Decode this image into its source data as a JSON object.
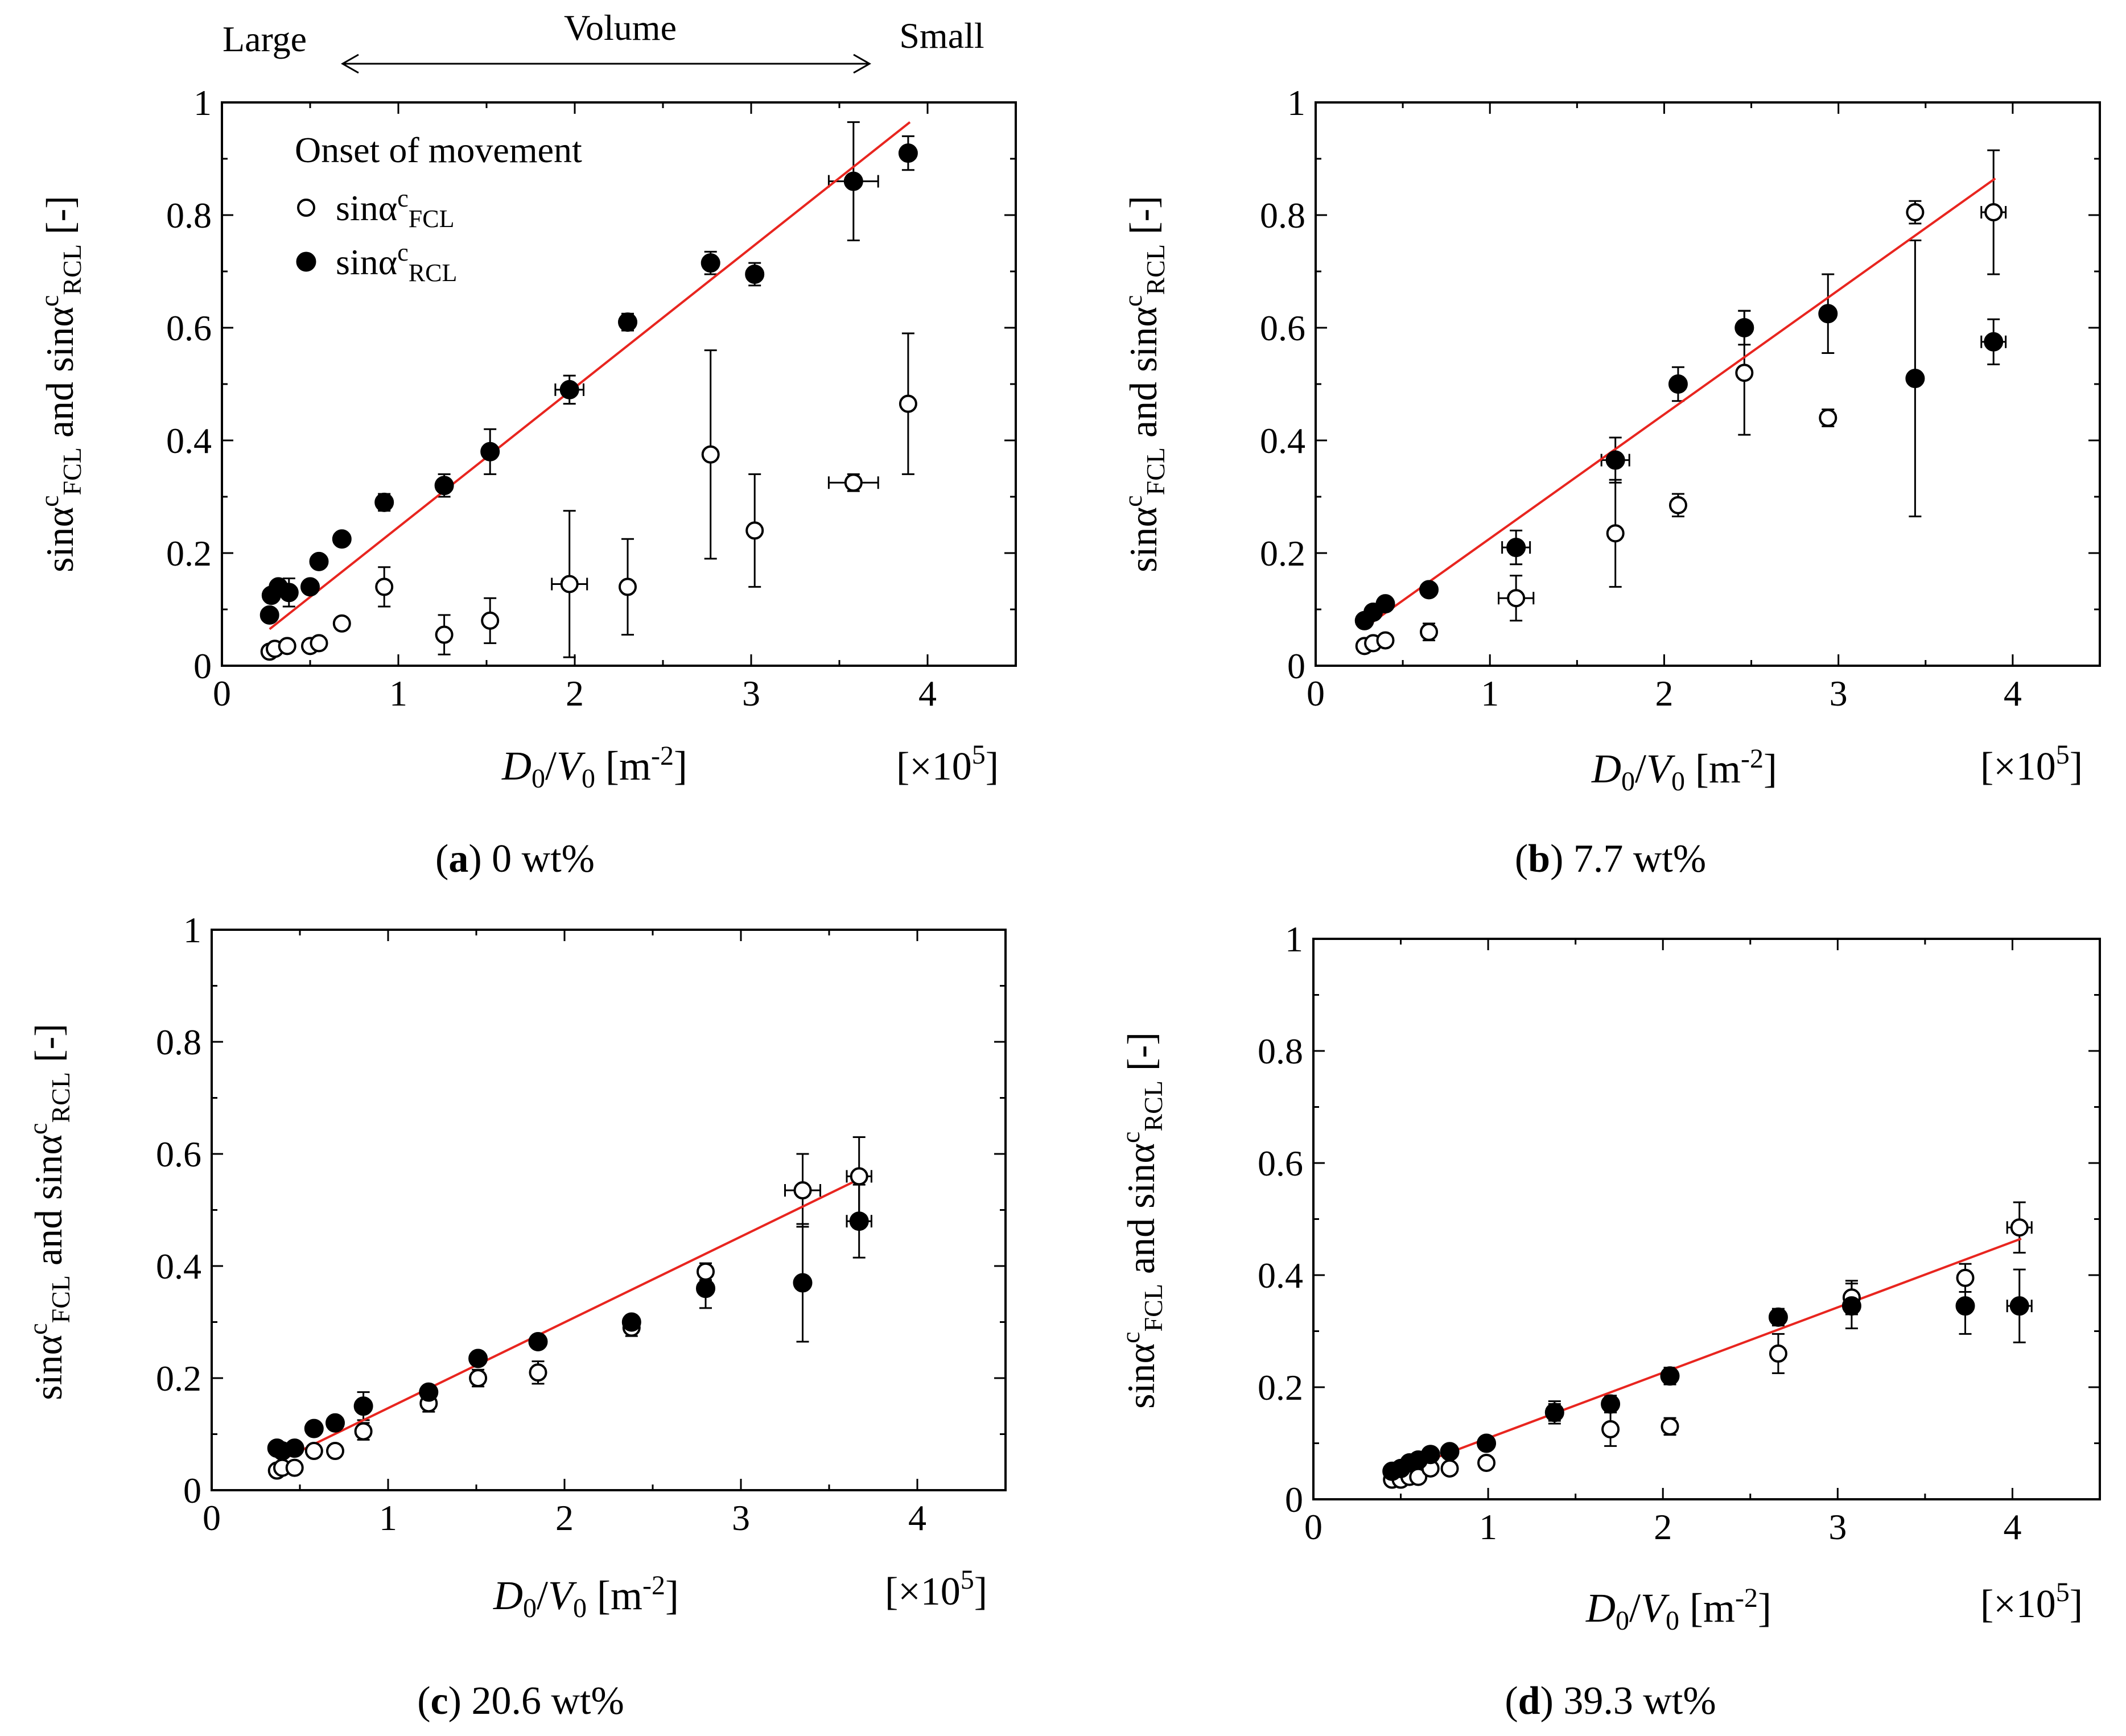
{
  "figure": {
    "top_annotation": {
      "large": "Large",
      "volume": "Volume",
      "small": "Small"
    },
    "legend": {
      "title": "Onset of movement",
      "series": [
        {
          "name": "FCL",
          "base": "sinα",
          "sup": "c",
          "sub": "FCL",
          "marker": "open-circle"
        },
        {
          "name": "RCL",
          "base": "sinα",
          "sup": "c",
          "sub": "RCL",
          "marker": "filled-circle"
        }
      ]
    }
  },
  "colors": {
    "fit_line": "#e8251f",
    "marker": "#000000",
    "axis": "#000000"
  },
  "chart_data": [
    {
      "type": "scatter",
      "panel": "a",
      "caption_letter": "a",
      "caption_text": " 0 wt%",
      "xlabel": {
        "d": "D",
        "d_sub": "0",
        "slash": "/",
        "v": "V",
        "v_sub": "0",
        "unit": " [m",
        "unit_sup": "-2",
        "unit_end": "]"
      },
      "ylabel": {
        "p1": "sinα",
        "p1_sup": "c",
        "p1_sub": "FCL",
        "mid": " and sinα",
        "p2_sup": "c",
        "p2_sub": "RCL",
        "end": " [-]"
      },
      "x_scale": {
        "text": "[×10",
        "sup": "5",
        "end": "]"
      },
      "xlim": [
        0,
        4.5
      ],
      "ylim": [
        0,
        1
      ],
      "xticks": [
        "0",
        "1",
        "2",
        "3",
        "4"
      ],
      "yticks": [
        "0",
        "0.2",
        "0.4",
        "0.6",
        "0.8",
        "1"
      ],
      "fit_line": {
        "x": [
          0.27,
          3.9
        ],
        "y": [
          0.065,
          0.965
        ]
      },
      "series": [
        {
          "name": "FCL",
          "marker": "open",
          "points": [
            {
              "x": 0.27,
              "y": 0.025,
              "ey": 0.01
            },
            {
              "x": 0.3,
              "y": 0.03,
              "ey": 0.01
            },
            {
              "x": 0.37,
              "y": 0.035,
              "ey": 0.01
            },
            {
              "x": 0.5,
              "y": 0.035,
              "ey": 0.01
            },
            {
              "x": 0.55,
              "y": 0.04,
              "ey": 0.01
            },
            {
              "x": 0.68,
              "y": 0.075,
              "ey": 0.01
            },
            {
              "x": 0.92,
              "y": 0.14,
              "ey": 0.035
            },
            {
              "x": 1.26,
              "y": 0.055,
              "ey": 0.035
            },
            {
              "x": 1.52,
              "y": 0.08,
              "ey": 0.04
            },
            {
              "x": 1.97,
              "y": 0.145,
              "ey": 0.13,
              "ex": 0.1
            },
            {
              "x": 2.3,
              "y": 0.14,
              "ey": 0.085
            },
            {
              "x": 2.77,
              "y": 0.375,
              "ey": 0.185
            },
            {
              "x": 3.02,
              "y": 0.24,
              "ey": 0.1
            },
            {
              "x": 3.58,
              "y": 0.325,
              "ey": 0.015,
              "ex": 0.14
            },
            {
              "x": 3.89,
              "y": 0.465,
              "ey": 0.125
            }
          ]
        },
        {
          "name": "RCL",
          "marker": "filled",
          "points": [
            {
              "x": 0.27,
              "y": 0.09,
              "ey": 0.01
            },
            {
              "x": 0.28,
              "y": 0.125,
              "ey": 0.01
            },
            {
              "x": 0.32,
              "y": 0.14,
              "ey": 0.01
            },
            {
              "x": 0.38,
              "y": 0.13,
              "ey": 0.025
            },
            {
              "x": 0.5,
              "y": 0.14,
              "ey": 0.01
            },
            {
              "x": 0.55,
              "y": 0.185,
              "ey": 0.01
            },
            {
              "x": 0.68,
              "y": 0.225,
              "ey": 0.01
            },
            {
              "x": 0.92,
              "y": 0.29,
              "ey": 0.015
            },
            {
              "x": 1.26,
              "y": 0.32,
              "ey": 0.02
            },
            {
              "x": 1.52,
              "y": 0.38,
              "ey": 0.04
            },
            {
              "x": 1.97,
              "y": 0.49,
              "ey": 0.025,
              "ex": 0.08
            },
            {
              "x": 2.3,
              "y": 0.61,
              "ey": 0.015
            },
            {
              "x": 2.77,
              "y": 0.715,
              "ey": 0.02
            },
            {
              "x": 3.02,
              "y": 0.695,
              "ey": 0.02
            },
            {
              "x": 3.58,
              "y": 0.86,
              "ey": 0.105,
              "ex": 0.14
            },
            {
              "x": 3.89,
              "y": 0.91,
              "ey": 0.03
            }
          ]
        }
      ]
    },
    {
      "type": "scatter",
      "panel": "b",
      "caption_letter": "b",
      "caption_text": " 7.7 wt%",
      "xlabel": {
        "d": "D",
        "d_sub": "0",
        "slash": "/",
        "v": "V",
        "v_sub": "0",
        "unit": " [m",
        "unit_sup": "-2",
        "unit_end": "]"
      },
      "ylabel": {
        "p1": "sinα",
        "p1_sup": "c",
        "p1_sub": "FCL",
        "mid": " and sinα",
        "p2_sup": "c",
        "p2_sub": "RCL",
        "end": " [-]"
      },
      "x_scale": {
        "text": "[×10",
        "sup": "5",
        "end": "]"
      },
      "xlim": [
        0,
        4.5
      ],
      "ylim": [
        0,
        1
      ],
      "xticks": [
        "0",
        "1",
        "2",
        "3",
        "4"
      ],
      "yticks": [
        "0",
        "0.2",
        "0.4",
        "0.6",
        "0.8",
        "1"
      ],
      "fit_line": {
        "x": [
          0.27,
          3.9
        ],
        "y": [
          0.065,
          0.865
        ]
      },
      "series": [
        {
          "name": "FCL",
          "marker": "open",
          "points": [
            {
              "x": 0.28,
              "y": 0.035,
              "ey": 0.01
            },
            {
              "x": 0.33,
              "y": 0.04,
              "ey": 0.01
            },
            {
              "x": 0.4,
              "y": 0.045,
              "ey": 0.01
            },
            {
              "x": 0.65,
              "y": 0.06,
              "ey": 0.015
            },
            {
              "x": 1.15,
              "y": 0.12,
              "ey": 0.04,
              "ex": 0.1
            },
            {
              "x": 1.72,
              "y": 0.235,
              "ey": 0.095
            },
            {
              "x": 2.08,
              "y": 0.285,
              "ey": 0.02
            },
            {
              "x": 2.46,
              "y": 0.52,
              "ey": 0.11
            },
            {
              "x": 2.94,
              "y": 0.44,
              "ey": 0.015
            },
            {
              "x": 3.44,
              "y": 0.805,
              "ey": 0.02
            },
            {
              "x": 3.89,
              "y": 0.805,
              "ey": 0.11,
              "ex": 0.07
            }
          ]
        },
        {
          "name": "RCL",
          "marker": "filled",
          "points": [
            {
              "x": 0.28,
              "y": 0.08,
              "ey": 0.01
            },
            {
              "x": 0.33,
              "y": 0.095,
              "ey": 0.01
            },
            {
              "x": 0.4,
              "y": 0.11,
              "ey": 0.01
            },
            {
              "x": 0.65,
              "y": 0.135,
              "ey": 0.01
            },
            {
              "x": 1.15,
              "y": 0.21,
              "ey": 0.03,
              "ex": 0.08
            },
            {
              "x": 1.72,
              "y": 0.365,
              "ey": 0.04,
              "ex": 0.08
            },
            {
              "x": 2.08,
              "y": 0.5,
              "ey": 0.03
            },
            {
              "x": 2.46,
              "y": 0.6,
              "ey": 0.03
            },
            {
              "x": 2.94,
              "y": 0.625,
              "ey": 0.07
            },
            {
              "x": 3.44,
              "y": 0.51,
              "ey": 0.245
            },
            {
              "x": 3.89,
              "y": 0.575,
              "ey": 0.04,
              "ex": 0.07
            }
          ]
        }
      ]
    },
    {
      "type": "scatter",
      "panel": "c",
      "caption_letter": "c",
      "caption_text": " 20.6 wt%",
      "xlabel": {
        "d": "D",
        "d_sub": "0",
        "slash": "/",
        "v": "V",
        "v_sub": "0",
        "unit": " [m",
        "unit_sup": "-2",
        "unit_end": "]"
      },
      "ylabel": {
        "p1": "sinα",
        "p1_sup": "c",
        "p1_sub": "FCL",
        "mid": " and sinα",
        "p2_sup": "c",
        "p2_sub": "RCL",
        "end": " [-]"
      },
      "x_scale": {
        "text": "[×10",
        "sup": "5",
        "end": "]"
      },
      "xlim": [
        0,
        4.5
      ],
      "ylim": [
        0,
        1
      ],
      "xticks": [
        "0",
        "1",
        "2",
        "3",
        "4"
      ],
      "yticks": [
        "0",
        "0.2",
        "0.4",
        "0.6",
        "0.8",
        "1"
      ],
      "fit_line": {
        "x": [
          0.37,
          3.67
        ],
        "y": [
          0.05,
          0.555
        ]
      },
      "series": [
        {
          "name": "FCL",
          "marker": "open",
          "points": [
            {
              "x": 0.37,
              "y": 0.035,
              "ey": 0.01
            },
            {
              "x": 0.4,
              "y": 0.04,
              "ey": 0.01
            },
            {
              "x": 0.47,
              "y": 0.04,
              "ey": 0.01
            },
            {
              "x": 0.58,
              "y": 0.07,
              "ey": 0.01
            },
            {
              "x": 0.7,
              "y": 0.07,
              "ey": 0.01
            },
            {
              "x": 0.86,
              "y": 0.105,
              "ey": 0.015
            },
            {
              "x": 1.23,
              "y": 0.155,
              "ey": 0.015
            },
            {
              "x": 1.51,
              "y": 0.2,
              "ey": 0.015
            },
            {
              "x": 1.85,
              "y": 0.21,
              "ey": 0.02
            },
            {
              "x": 2.38,
              "y": 0.29,
              "ey": 0.015
            },
            {
              "x": 2.8,
              "y": 0.39,
              "ey": 0.015
            },
            {
              "x": 3.35,
              "y": 0.535,
              "ey": 0.065,
              "ex": 0.1
            },
            {
              "x": 3.67,
              "y": 0.56,
              "ey": 0.07,
              "ex": 0.07
            }
          ]
        },
        {
          "name": "RCL",
          "marker": "filled",
          "points": [
            {
              "x": 0.37,
              "y": 0.075,
              "ey": 0.01
            },
            {
              "x": 0.4,
              "y": 0.07,
              "ey": 0.01
            },
            {
              "x": 0.47,
              "y": 0.075,
              "ey": 0.01
            },
            {
              "x": 0.58,
              "y": 0.11,
              "ey": 0.01
            },
            {
              "x": 0.7,
              "y": 0.12,
              "ey": 0.01
            },
            {
              "x": 0.86,
              "y": 0.15,
              "ey": 0.025
            },
            {
              "x": 1.23,
              "y": 0.175,
              "ey": 0.01
            },
            {
              "x": 1.51,
              "y": 0.235,
              "ey": 0.01
            },
            {
              "x": 1.85,
              "y": 0.265,
              "ey": 0.01
            },
            {
              "x": 2.38,
              "y": 0.3,
              "ey": 0.01
            },
            {
              "x": 2.8,
              "y": 0.36,
              "ey": 0.035
            },
            {
              "x": 3.35,
              "y": 0.37,
              "ey": 0.105
            },
            {
              "x": 3.67,
              "y": 0.48,
              "ey": 0.065,
              "ex": 0.07
            }
          ]
        }
      ]
    },
    {
      "type": "scatter",
      "panel": "d",
      "caption_letter": "d",
      "caption_text": " 39.3 wt%",
      "xlabel": {
        "d": "D",
        "d_sub": "0",
        "slash": "/",
        "v": "V",
        "v_sub": "0",
        "unit": " [m",
        "unit_sup": "-2",
        "unit_end": "]"
      },
      "ylabel": {
        "p1": "sinα",
        "p1_sup": "c",
        "p1_sub": "FCL",
        "mid": " and sinα",
        "p2_sup": "c",
        "p2_sub": "RCL",
        "end": " [-]"
      },
      "x_scale": {
        "text": "[×10",
        "sup": "5",
        "end": "]"
      },
      "xlim": [
        0,
        4.5
      ],
      "ylim": [
        0,
        1
      ],
      "xticks": [
        "0",
        "1",
        "2",
        "3",
        "4"
      ],
      "yticks": [
        "0",
        "0.2",
        "0.4",
        "0.6",
        "0.8",
        "1"
      ],
      "fit_line": {
        "x": [
          0.45,
          4.05
        ],
        "y": [
          0.045,
          0.465
        ]
      },
      "series": [
        {
          "name": "FCL",
          "marker": "open",
          "points": [
            {
              "x": 0.45,
              "y": 0.035,
              "ey": 0.01
            },
            {
              "x": 0.5,
              "y": 0.035,
              "ey": 0.01
            },
            {
              "x": 0.55,
              "y": 0.04,
              "ey": 0.01
            },
            {
              "x": 0.6,
              "y": 0.04,
              "ey": 0.01
            },
            {
              "x": 0.67,
              "y": 0.055,
              "ey": 0.01
            },
            {
              "x": 0.78,
              "y": 0.055,
              "ey": 0.01
            },
            {
              "x": 0.99,
              "y": 0.065,
              "ey": 0.01
            },
            {
              "x": 1.38,
              "y": 0.155,
              "ey": 0.02
            },
            {
              "x": 1.7,
              "y": 0.125,
              "ey": 0.03
            },
            {
              "x": 2.04,
              "y": 0.13,
              "ey": 0.015
            },
            {
              "x": 2.66,
              "y": 0.26,
              "ey": 0.035
            },
            {
              "x": 3.08,
              "y": 0.36,
              "ey": 0.03
            },
            {
              "x": 3.73,
              "y": 0.395,
              "ey": 0.025
            },
            {
              "x": 4.04,
              "y": 0.485,
              "ey": 0.045,
              "ex": 0.07
            }
          ]
        },
        {
          "name": "RCL",
          "marker": "filled",
          "points": [
            {
              "x": 0.45,
              "y": 0.05,
              "ey": 0.01
            },
            {
              "x": 0.5,
              "y": 0.055,
              "ey": 0.01
            },
            {
              "x": 0.55,
              "y": 0.065,
              "ey": 0.01
            },
            {
              "x": 0.6,
              "y": 0.07,
              "ey": 0.01
            },
            {
              "x": 0.67,
              "y": 0.08,
              "ey": 0.01
            },
            {
              "x": 0.78,
              "y": 0.085,
              "ey": 0.01
            },
            {
              "x": 0.99,
              "y": 0.1,
              "ey": 0.01
            },
            {
              "x": 1.38,
              "y": 0.155,
              "ey": 0.015
            },
            {
              "x": 1.7,
              "y": 0.17,
              "ey": 0.015
            },
            {
              "x": 2.04,
              "y": 0.22,
              "ey": 0.015
            },
            {
              "x": 2.66,
              "y": 0.325,
              "ey": 0.015
            },
            {
              "x": 3.08,
              "y": 0.345,
              "ey": 0.04
            },
            {
              "x": 3.73,
              "y": 0.345,
              "ey": 0.05
            },
            {
              "x": 4.04,
              "y": 0.345,
              "ey": 0.065,
              "ex": 0.07
            }
          ]
        }
      ]
    }
  ]
}
